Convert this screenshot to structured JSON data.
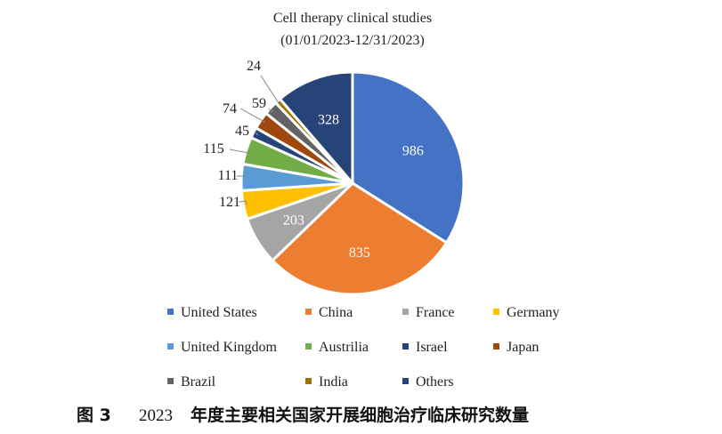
{
  "chart_data": {
    "type": "pie",
    "title_line1": "Cell therapy clinical studies",
    "title_line2": "(01/01/2023-12/31/2023)",
    "slices": [
      {
        "name": "United States",
        "value": 986,
        "color": "#4472C4",
        "label_inside": true
      },
      {
        "name": "China",
        "value": 835,
        "color": "#ED7D31",
        "label_inside": true
      },
      {
        "name": "France",
        "value": 203,
        "color": "#A5A5A5",
        "label_inside": true
      },
      {
        "name": "Germany",
        "value": 121,
        "color": "#FFC000",
        "label_inside": false
      },
      {
        "name": "United Kingdom",
        "value": 111,
        "color": "#5B9BD5",
        "label_inside": false
      },
      {
        "name": "Austrilia",
        "value": 115,
        "color": "#70AD47",
        "label_inside": false
      },
      {
        "name": "Israel",
        "value": 45,
        "color": "#264478",
        "label_inside": false
      },
      {
        "name": "Japan",
        "value": 74,
        "color": "#9E480E",
        "label_inside": false
      },
      {
        "name": "Brazil",
        "value": 59,
        "color": "#636363",
        "label_inside": false
      },
      {
        "name": "India",
        "value": 24,
        "color": "#997300",
        "label_inside": false
      },
      {
        "name": "Others",
        "value": 328,
        "color": "#264478",
        "label_inside": true
      }
    ],
    "legend_placement": "bottom"
  },
  "caption": {
    "figure_label": "图 3",
    "year": "2023",
    "text": "年度主要相关国家开展细胞治疗临床研究数量"
  }
}
